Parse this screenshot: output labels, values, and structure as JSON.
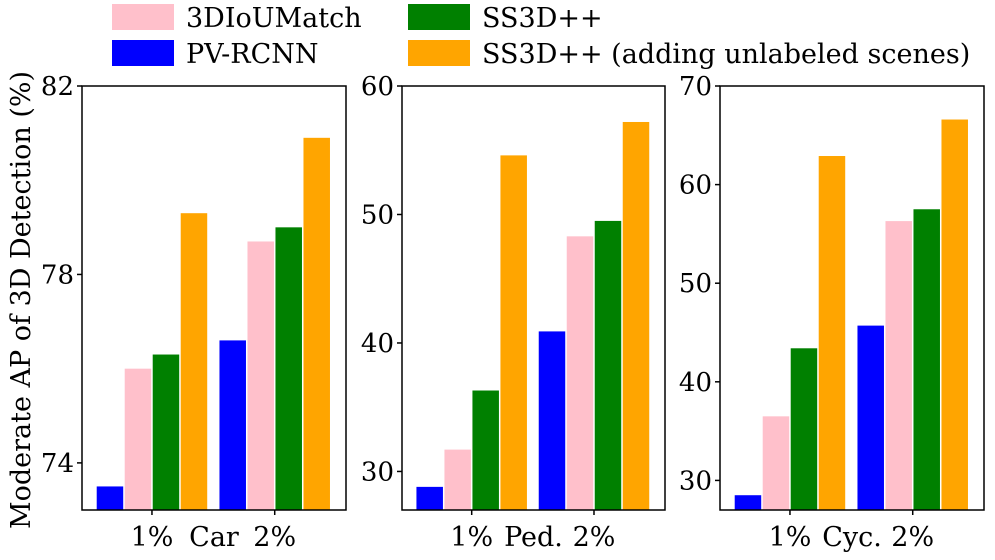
{
  "legend": {
    "entries": [
      {
        "label": "3DIoUMatch",
        "color": "#FFC0CB"
      },
      {
        "label": "SS3D++",
        "color": "#008000"
      },
      {
        "label": "PV-RCNN",
        "color": "#0000FF"
      },
      {
        "label": "SS3D++ (adding unlabeled scenes)",
        "color": "#FFA500"
      }
    ]
  },
  "ylabel": "Moderate AP of 3D Detection (%)",
  "chart_data": [
    {
      "type": "bar",
      "title": "Car",
      "xlabel": "Car",
      "categories": [
        "1%",
        "2%"
      ],
      "ylim": [
        73,
        82
      ],
      "yticks": [
        74,
        78,
        82
      ],
      "series": [
        {
          "name": "PV-RCNN",
          "color": "#0000FF",
          "values": [
            73.5,
            76.6
          ]
        },
        {
          "name": "3DIoUMatch",
          "color": "#FFC0CB",
          "values": [
            76.0,
            78.7
          ]
        },
        {
          "name": "SS3D++",
          "color": "#008000",
          "values": [
            76.3,
            79.0
          ]
        },
        {
          "name": "SS3D++ (adding unlabeled scenes)",
          "color": "#FFA500",
          "values": [
            79.3,
            80.9
          ]
        }
      ]
    },
    {
      "type": "bar",
      "title": "Ped.",
      "xlabel": "Ped.",
      "categories": [
        "1%",
        "2%"
      ],
      "ylim": [
        27,
        60
      ],
      "yticks": [
        30,
        40,
        50,
        60
      ],
      "series": [
        {
          "name": "PV-RCNN",
          "color": "#0000FF",
          "values": [
            28.8,
            40.9
          ]
        },
        {
          "name": "3DIoUMatch",
          "color": "#FFC0CB",
          "values": [
            31.7,
            48.3
          ]
        },
        {
          "name": "SS3D++",
          "color": "#008000",
          "values": [
            36.3,
            49.5
          ]
        },
        {
          "name": "SS3D++ (adding unlabeled scenes)",
          "color": "#FFA500",
          "values": [
            54.6,
            57.2
          ]
        }
      ]
    },
    {
      "type": "bar",
      "title": "Cyc.",
      "xlabel": "Cyc.",
      "categories": [
        "1%",
        "2%"
      ],
      "ylim": [
        27,
        70
      ],
      "yticks": [
        30,
        40,
        50,
        60,
        70
      ],
      "series": [
        {
          "name": "PV-RCNN",
          "color": "#0000FF",
          "values": [
            28.5,
            45.7
          ]
        },
        {
          "name": "3DIoUMatch",
          "color": "#FFC0CB",
          "values": [
            36.5,
            56.3
          ]
        },
        {
          "name": "SS3D++",
          "color": "#008000",
          "values": [
            43.4,
            57.5
          ]
        },
        {
          "name": "SS3D++ (adding unlabeled scenes)",
          "color": "#FFA500",
          "values": [
            62.9,
            66.6
          ]
        }
      ]
    }
  ]
}
